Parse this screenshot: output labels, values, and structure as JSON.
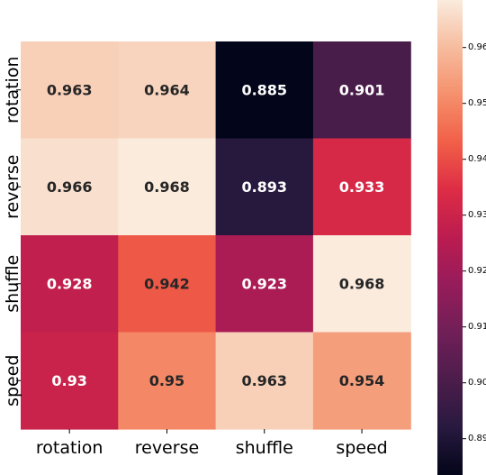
{
  "chart_data": {
    "type": "heatmap",
    "title": "",
    "xlabel": "",
    "ylabel": "",
    "x_categories": [
      "rotation",
      "reverse",
      "shuffle",
      "speed"
    ],
    "y_categories": [
      "rotation",
      "reverse",
      "shuffle",
      "speed"
    ],
    "values": [
      [
        0.963,
        0.964,
        0.885,
        0.901
      ],
      [
        0.966,
        0.968,
        0.893,
        0.933
      ],
      [
        0.928,
        0.942,
        0.923,
        0.968
      ],
      [
        0.93,
        0.95,
        0.963,
        0.954
      ]
    ],
    "value_labels": [
      [
        "0.963",
        "0.964",
        "0.885",
        "0.901"
      ],
      [
        "0.966",
        "0.968",
        "0.893",
        "0.933"
      ],
      [
        "0.928",
        "0.942",
        "0.923",
        "0.968"
      ],
      [
        "0.93",
        "0.95",
        "0.963",
        "0.954"
      ]
    ],
    "colorbar": {
      "colormap": "rocket",
      "vmin": 0.885,
      "vmax": 0.968,
      "ticks": [
        0.89,
        0.9,
        0.91,
        0.92,
        0.93,
        0.94,
        0.95,
        0.96
      ],
      "tick_labels": [
        "0.89",
        "0.90",
        "0.91",
        "0.92",
        "0.93",
        "0.94",
        "0.95",
        "0.96"
      ]
    },
    "colors": {
      "dark_text": "#262626",
      "light_text": "#ffffff"
    }
  }
}
